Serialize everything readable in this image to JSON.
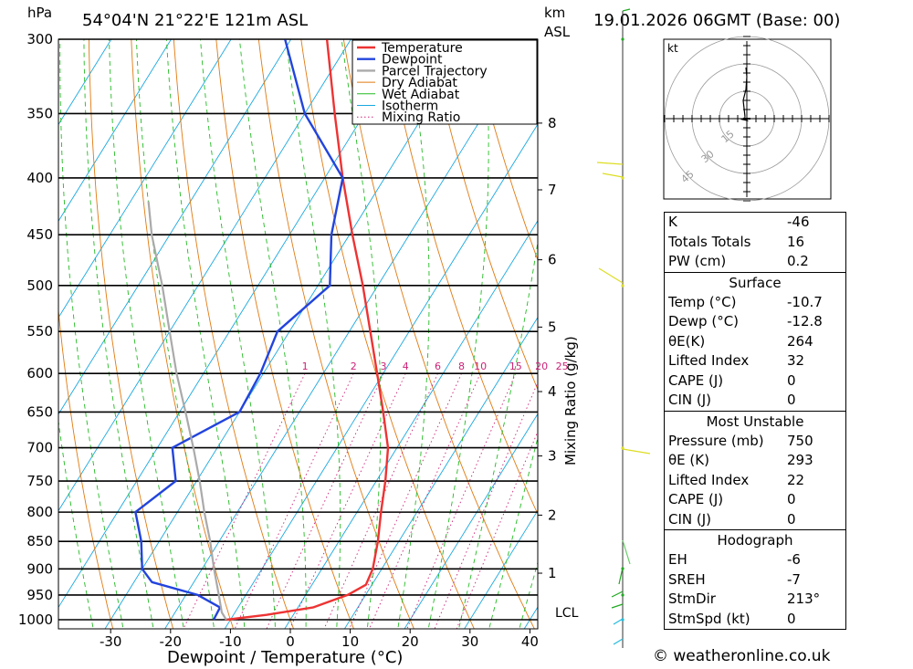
{
  "header": {
    "location": "54°04'N 21°22'E 121m ASL",
    "run": "19.01.2026 06GMT (Base: 00)",
    "unit_hpa": "hPa",
    "unit_km": "km",
    "unit_asl": "ASL"
  },
  "chart_data": {
    "type": "skew-t",
    "title": "54°04'N 21°22'E 121m ASL",
    "xlabel": "Dewpoint / Temperature (°C)",
    "ylabel": "hPa",
    "right_label": "Mixing Ratio (g/kg)",
    "pressure_ticks": [
      300,
      350,
      400,
      450,
      500,
      550,
      600,
      650,
      700,
      750,
      800,
      850,
      900,
      950,
      1000
    ],
    "temp_ticks": [
      -30,
      -20,
      -10,
      0,
      10,
      20,
      30,
      40
    ],
    "km_ticks": [
      {
        "label": "8",
        "p": 357
      },
      {
        "label": "7",
        "p": 410
      },
      {
        "label": "6",
        "p": 474
      },
      {
        "label": "5",
        "p": 545
      },
      {
        "label": "4",
        "p": 623
      },
      {
        "label": "3",
        "p": 712
      },
      {
        "label": "2",
        "p": 805
      },
      {
        "label": "1",
        "p": 908
      }
    ],
    "lcl_label": "LCL",
    "lcl_p": 985,
    "mixing_ratio_labels": [
      "1",
      "2",
      "3",
      "4",
      "6",
      "8",
      "10",
      "15",
      "20",
      "25"
    ],
    "legend": [
      "Temperature",
      "Dewpoint",
      "Parcel Trajectory",
      "Dry Adiabat",
      "Wet Adiabat",
      "Isotherm",
      "Mixing Ratio"
    ],
    "series": [
      {
        "name": "Temperature",
        "color": "#ee3333",
        "points": [
          {
            "p": 1000,
            "t": -10.7
          },
          {
            "p": 990,
            "t": -4.5
          },
          {
            "p": 975,
            "t": 2.5
          },
          {
            "p": 950,
            "t": 7.0
          },
          {
            "p": 930,
            "t": 9.0
          },
          {
            "p": 900,
            "t": 8.5
          },
          {
            "p": 850,
            "t": 6.5
          },
          {
            "p": 800,
            "t": 4.0
          },
          {
            "p": 750,
            "t": 1.5
          },
          {
            "p": 700,
            "t": -1.5
          },
          {
            "p": 650,
            "t": -6.0
          },
          {
            "p": 600,
            "t": -11.0
          },
          {
            "p": 550,
            "t": -16.5
          },
          {
            "p": 500,
            "t": -22.5
          },
          {
            "p": 450,
            "t": -29.5
          },
          {
            "p": 400,
            "t": -37.0
          },
          {
            "p": 350,
            "t": -45.0
          },
          {
            "p": 300,
            "t": -54.0
          }
        ]
      },
      {
        "name": "Dewpoint",
        "color": "#2244dd",
        "points": [
          {
            "p": 1000,
            "t": -12.8
          },
          {
            "p": 975,
            "t": -13.0
          },
          {
            "p": 950,
            "t": -18.0
          },
          {
            "p": 925,
            "t": -27.0
          },
          {
            "p": 900,
            "t": -30.0
          },
          {
            "p": 850,
            "t": -33.0
          },
          {
            "p": 800,
            "t": -37.0
          },
          {
            "p": 750,
            "t": -33.5
          },
          {
            "p": 700,
            "t": -37.5
          },
          {
            "p": 650,
            "t": -30.0
          },
          {
            "p": 600,
            "t": -30.5
          },
          {
            "p": 550,
            "t": -32.0
          },
          {
            "p": 500,
            "t": -28.0
          },
          {
            "p": 450,
            "t": -33.0
          },
          {
            "p": 400,
            "t": -37.0
          },
          {
            "p": 350,
            "t": -50.0
          },
          {
            "p": 300,
            "t": -61.0
          }
        ]
      },
      {
        "name": "Parcel Trajectory",
        "color": "#aaaaaa",
        "points": [
          {
            "p": 1000,
            "t": -10.7
          },
          {
            "p": 985,
            "t": -12.2
          },
          {
            "p": 950,
            "t": -14.5
          },
          {
            "p": 900,
            "t": -18.0
          },
          {
            "p": 850,
            "t": -21.5
          },
          {
            "p": 800,
            "t": -25.5
          },
          {
            "p": 750,
            "t": -29.5
          },
          {
            "p": 700,
            "t": -34.0
          },
          {
            "p": 650,
            "t": -39.0
          },
          {
            "p": 600,
            "t": -44.5
          },
          {
            "p": 550,
            "t": -50.0
          },
          {
            "p": 500,
            "t": -56.0
          },
          {
            "p": 450,
            "t": -63.0
          },
          {
            "p": 420,
            "t": -67.0
          }
        ]
      }
    ],
    "hodograph": {
      "unit": "kt",
      "rings": [
        "15",
        "30",
        "45"
      ]
    }
  },
  "indices": {
    "rows": [
      {
        "label": "K",
        "value": "-46"
      },
      {
        "label": "Totals Totals",
        "value": "16"
      },
      {
        "label": "PW (cm)",
        "value": "0.2"
      }
    ]
  },
  "surface": {
    "title": "Surface",
    "rows": [
      {
        "label": "Temp (°C)",
        "value": "-10.7"
      },
      {
        "label": "Dewp (°C)",
        "value": "-12.8"
      },
      {
        "label": "θE(K)",
        "value": "264"
      },
      {
        "label": "Lifted Index",
        "value": "32"
      },
      {
        "label": "CAPE (J)",
        "value": "0"
      },
      {
        "label": "CIN (J)",
        "value": "0"
      }
    ]
  },
  "most_unstable": {
    "title": "Most Unstable",
    "rows": [
      {
        "label": "Pressure (mb)",
        "value": "750"
      },
      {
        "label": "θE (K)",
        "value": "293"
      },
      {
        "label": "Lifted Index",
        "value": "22"
      },
      {
        "label": "CAPE (J)",
        "value": "0"
      },
      {
        "label": "CIN (J)",
        "value": "0"
      }
    ]
  },
  "hodograph_table": {
    "title": "Hodograph",
    "rows": [
      {
        "label": "EH",
        "value": "-6"
      },
      {
        "label": "SREH",
        "value": "-7"
      },
      {
        "label": "StmDir",
        "value": "213°"
      },
      {
        "label": "StmSpd (kt)",
        "value": "0"
      }
    ]
  },
  "footer": "© weatheronline.co.uk"
}
